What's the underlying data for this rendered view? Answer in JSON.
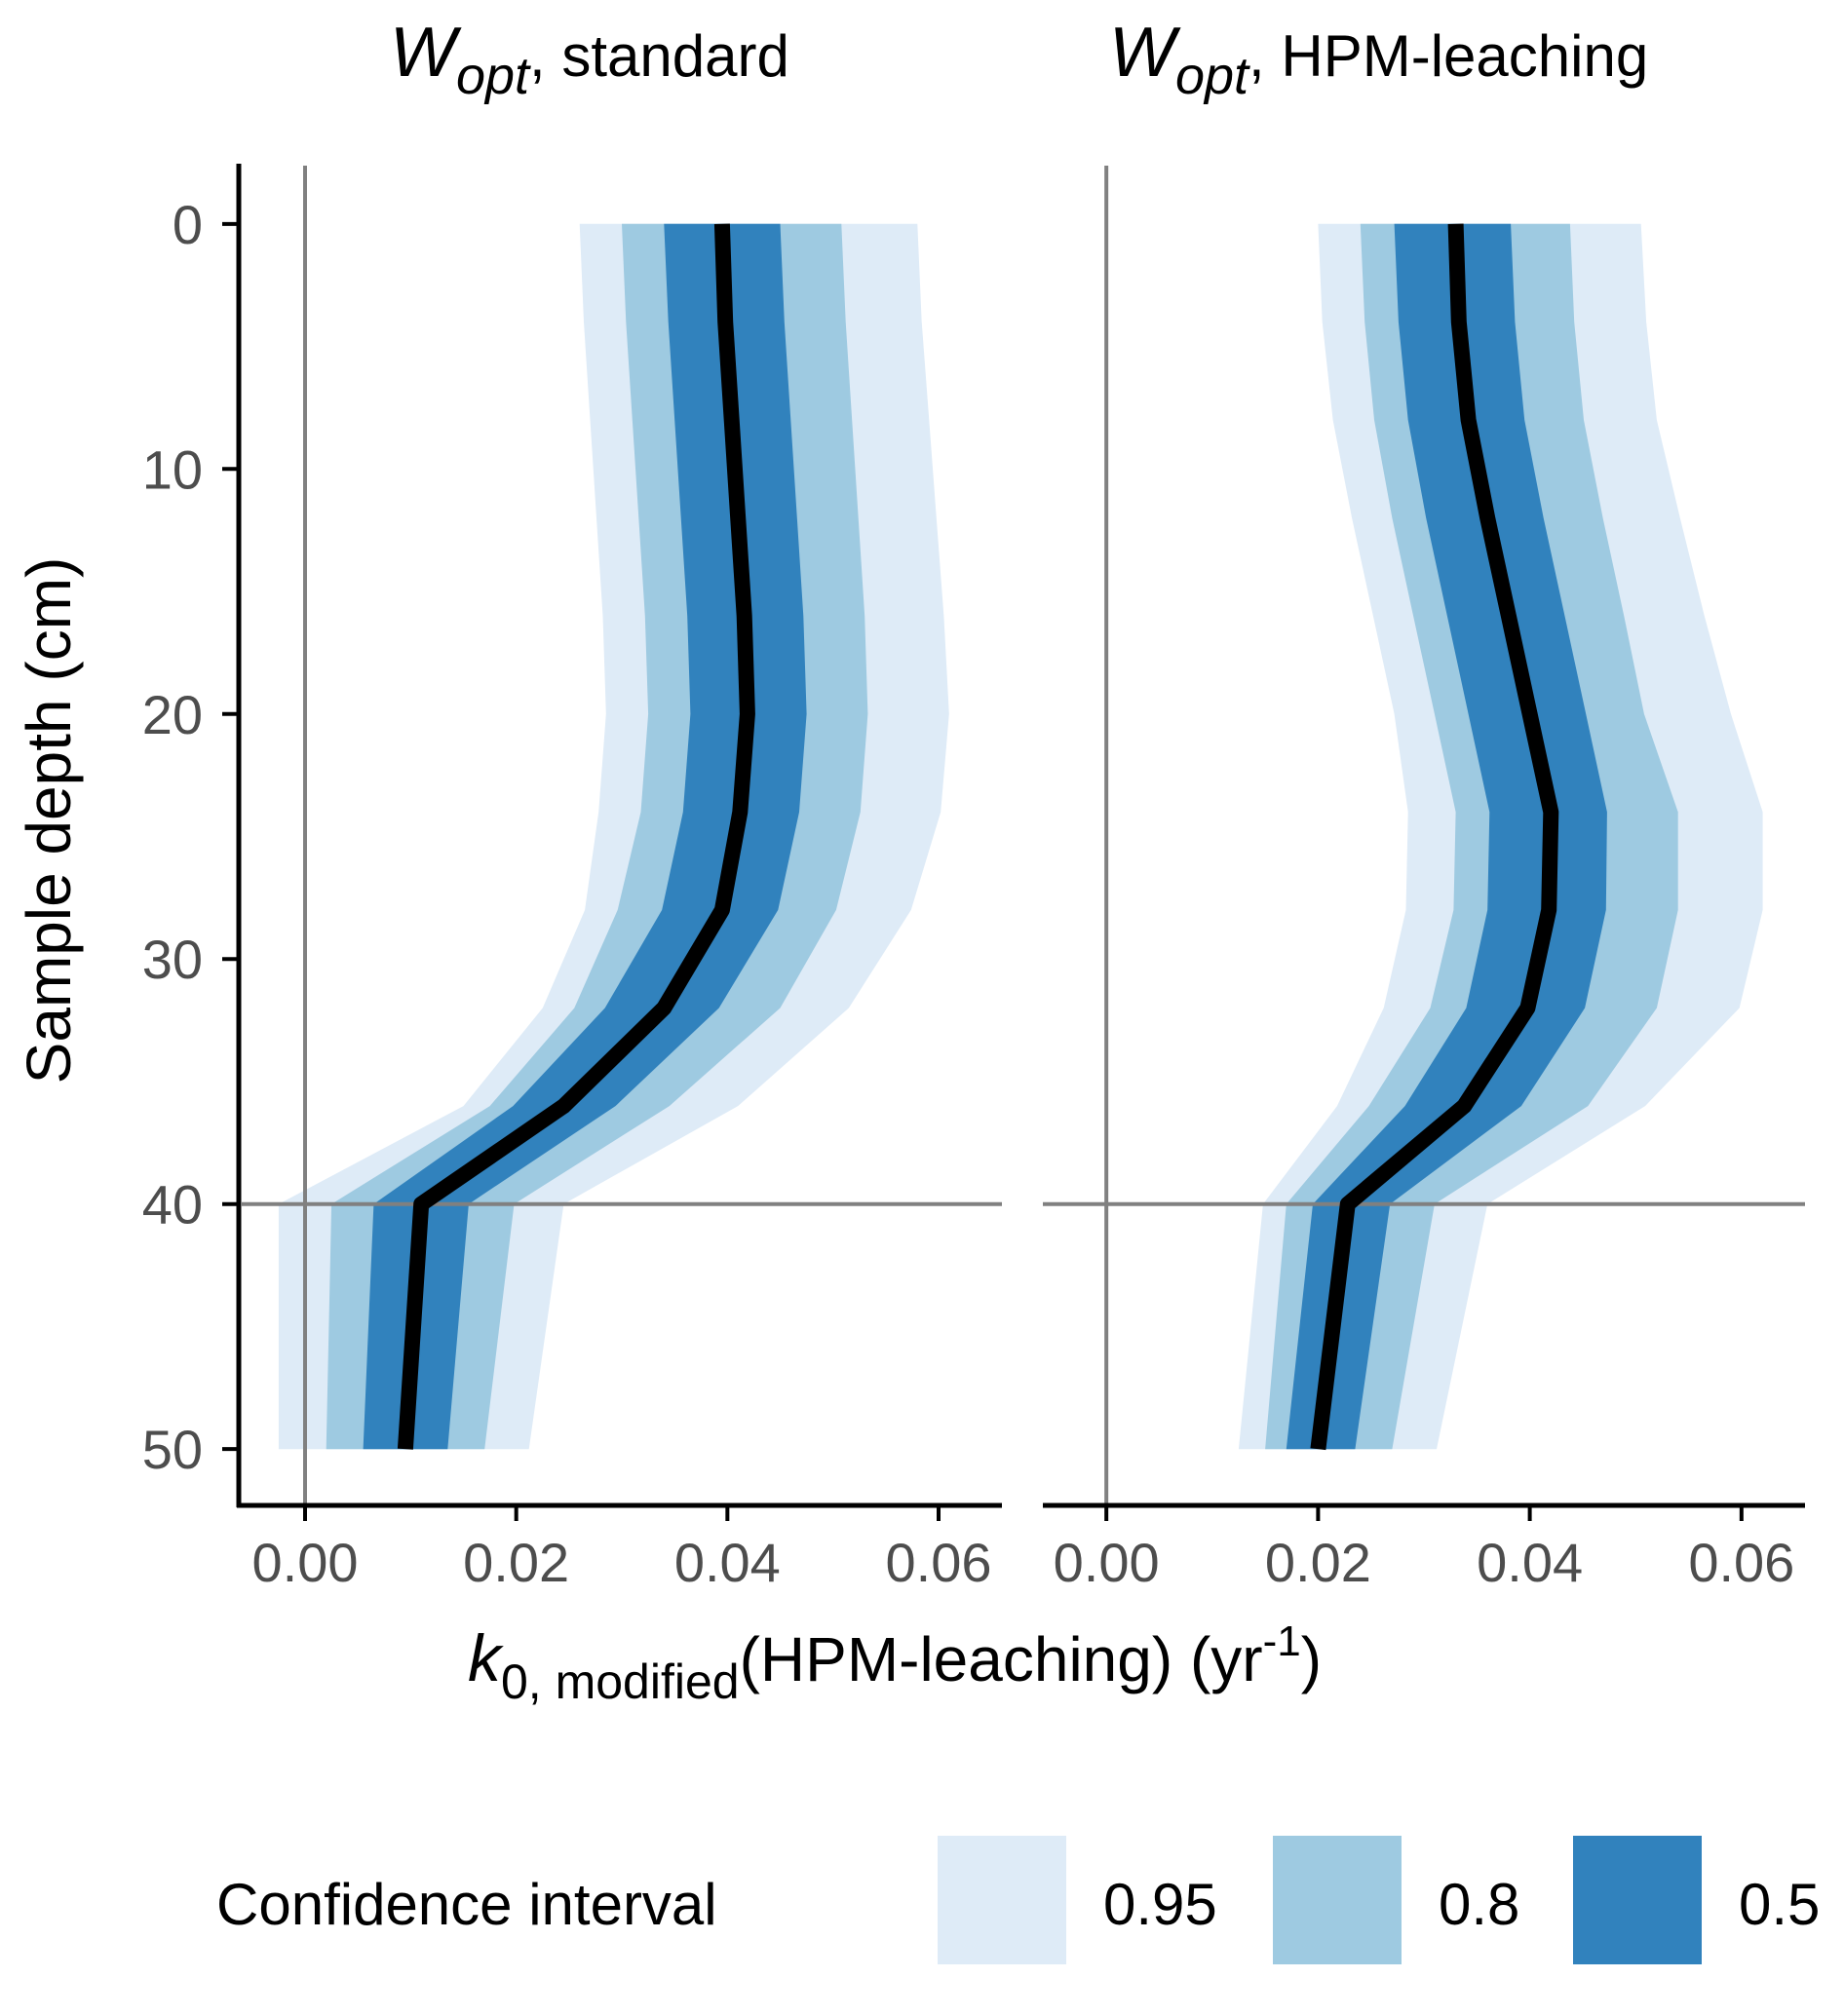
{
  "chart_data": {
    "type": "area",
    "description": "Posterior ribbons of modified decay rate vs depth",
    "y_axis": {
      "label": "Sample depth (cm)",
      "ticks": [
        "0",
        "10",
        "20",
        "30",
        "40",
        "50"
      ],
      "tick_values": [
        0,
        10,
        20,
        30,
        40,
        50
      ],
      "ylim": [
        -2.3,
        52.3
      ],
      "reversed": true
    },
    "x_axis": {
      "label_main": "k",
      "label_sub": "0, modified",
      "label_rest": "(HPM-leaching) (yr",
      "label_sup": "-1",
      "label_close": ")",
      "ticks": [
        "0.00",
        "0.02",
        "0.04",
        "0.06"
      ],
      "tick_values": [
        0.0,
        0.02,
        0.04,
        0.06
      ],
      "xlim": [
        -0.006,
        0.066
      ]
    },
    "reference_lines": {
      "x": 0,
      "y": 40
    },
    "panels": [
      {
        "title_main": "W",
        "title_sub": "opt",
        "title_rest": ", standard",
        "depth": [
          0,
          4,
          8,
          12,
          16,
          20,
          24,
          28,
          32,
          36,
          40,
          50
        ],
        "median": [
          0.0395,
          0.0398,
          0.0404,
          0.041,
          0.0416,
          0.0419,
          0.0412,
          0.0395,
          0.034,
          0.0245,
          0.011,
          0.0095
        ],
        "ci50": [
          [
            0.034,
            0.045
          ],
          [
            0.0344,
            0.0454
          ],
          [
            0.035,
            0.046
          ],
          [
            0.0356,
            0.0466
          ],
          [
            0.0362,
            0.0472
          ],
          [
            0.0365,
            0.0475
          ],
          [
            0.0358,
            0.0468
          ],
          [
            0.0338,
            0.0448
          ],
          [
            0.0284,
            0.0392
          ],
          [
            0.0197,
            0.0294
          ],
          [
            0.0065,
            0.0155
          ],
          [
            0.0055,
            0.0135
          ]
        ],
        "ci80": [
          [
            0.03,
            0.0508
          ],
          [
            0.0304,
            0.0512
          ],
          [
            0.031,
            0.0518
          ],
          [
            0.0316,
            0.0524
          ],
          [
            0.0322,
            0.053
          ],
          [
            0.0325,
            0.0533
          ],
          [
            0.0318,
            0.0526
          ],
          [
            0.0296,
            0.0503
          ],
          [
            0.0255,
            0.045
          ],
          [
            0.0175,
            0.0345
          ],
          [
            0.0025,
            0.0198
          ],
          [
            0.002,
            0.017
          ]
        ],
        "ci95": [
          [
            0.026,
            0.058
          ],
          [
            0.0264,
            0.0584
          ],
          [
            0.027,
            0.0591
          ],
          [
            0.0276,
            0.0598
          ],
          [
            0.0282,
            0.0605
          ],
          [
            0.0285,
            0.061
          ],
          [
            0.0278,
            0.0602
          ],
          [
            0.0265,
            0.0574
          ],
          [
            0.0225,
            0.0515
          ],
          [
            0.015,
            0.041
          ],
          [
            -0.0025,
            0.0245
          ],
          [
            -0.0025,
            0.0212
          ]
        ]
      },
      {
        "title_main": "W",
        "title_sub": "opt",
        "title_rest": ", HPM-leaching",
        "depth": [
          0,
          4,
          8,
          12,
          16,
          20,
          24,
          28,
          32,
          36,
          40,
          50
        ],
        "median": [
          0.033,
          0.0333,
          0.0342,
          0.036,
          0.038,
          0.04,
          0.042,
          0.0418,
          0.0398,
          0.0338,
          0.0228,
          0.02
        ],
        "ci50": [
          [
            0.0272,
            0.0382
          ],
          [
            0.0276,
            0.0386
          ],
          [
            0.0285,
            0.0395
          ],
          [
            0.0302,
            0.0413
          ],
          [
            0.0322,
            0.0433
          ],
          [
            0.0342,
            0.0453
          ],
          [
            0.0362,
            0.0473
          ],
          [
            0.036,
            0.0472
          ],
          [
            0.034,
            0.0452
          ],
          [
            0.0282,
            0.0392
          ],
          [
            0.0195,
            0.0268
          ],
          [
            0.017,
            0.0235
          ]
        ],
        "ci80": [
          [
            0.024,
            0.0438
          ],
          [
            0.0244,
            0.0442
          ],
          [
            0.0253,
            0.0451
          ],
          [
            0.027,
            0.0469
          ],
          [
            0.029,
            0.0489
          ],
          [
            0.031,
            0.0508
          ],
          [
            0.033,
            0.054
          ],
          [
            0.0328,
            0.054
          ],
          [
            0.0306,
            0.052
          ],
          [
            0.0248,
            0.0455
          ],
          [
            0.017,
            0.031
          ],
          [
            0.015,
            0.027
          ]
        ],
        "ci95": [
          [
            0.02,
            0.0505
          ],
          [
            0.0204,
            0.051
          ],
          [
            0.0214,
            0.052
          ],
          [
            0.0232,
            0.0542
          ],
          [
            0.0252,
            0.0565
          ],
          [
            0.0272,
            0.059
          ],
          [
            0.0285,
            0.062
          ],
          [
            0.0283,
            0.062
          ],
          [
            0.0262,
            0.0598
          ],
          [
            0.0218,
            0.0509
          ],
          [
            0.0148,
            0.036
          ],
          [
            0.0125,
            0.0312
          ]
        ]
      }
    ],
    "legend": {
      "title": "Confidence interval",
      "position": "bottom",
      "items": [
        {
          "label": "0.95",
          "color": "#deebf7"
        },
        {
          "label": "0.8",
          "color": "#9ecae1"
        },
        {
          "label": "0.5",
          "color": "#3182bd"
        }
      ]
    },
    "median_color": "#000000",
    "reference_line_color": "#808080"
  }
}
